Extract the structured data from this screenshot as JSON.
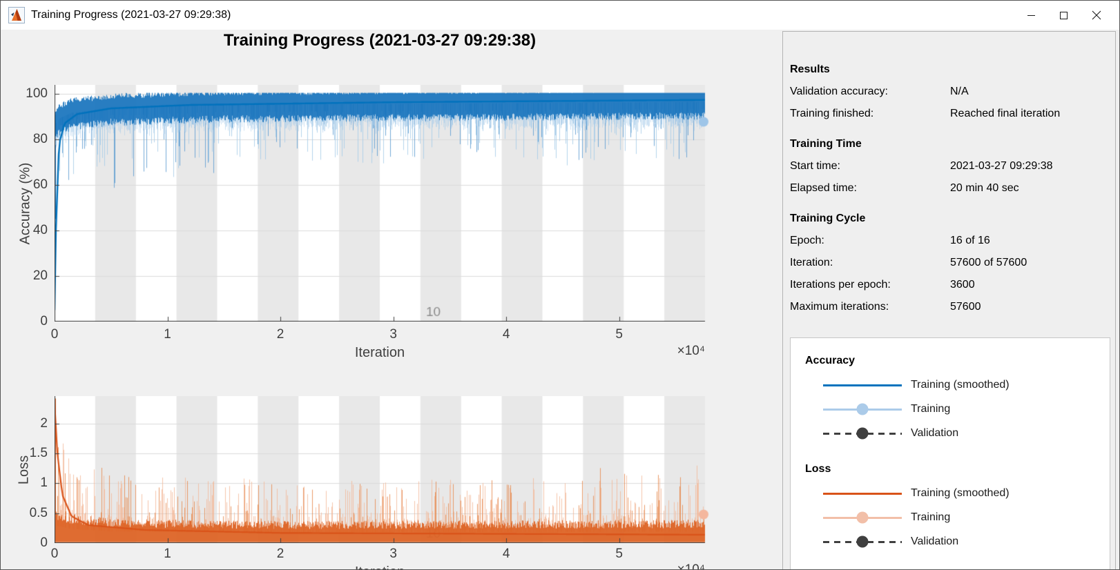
{
  "window": {
    "title": "Training Progress (2021-03-27 09:29:38)",
    "controls": {
      "minimize": "Minimize",
      "maximize": "Maximize",
      "close": "Close"
    }
  },
  "main": {
    "title": "Training Progress (2021-03-27 09:29:38)"
  },
  "panel": {
    "sections": [
      {
        "title": "Results",
        "rows": [
          {
            "label": "Validation accuracy:",
            "value": "N/A"
          },
          {
            "label": "Training finished:",
            "value": "Reached final iteration"
          }
        ]
      },
      {
        "title": "Training Time",
        "rows": [
          {
            "label": "Start time:",
            "value": "2021-03-27 09:29:38"
          },
          {
            "label": "Elapsed time:",
            "value": "20 min 40 sec"
          }
        ]
      },
      {
        "title": "Training Cycle",
        "rows": [
          {
            "label": "Epoch:",
            "value": "16 of 16"
          },
          {
            "label": "Iteration:",
            "value": "57600 of 57600"
          },
          {
            "label": "Iterations per epoch:",
            "value": "3600"
          },
          {
            "label": "Maximum iterations:",
            "value": "57600"
          }
        ]
      }
    ]
  },
  "legend": {
    "groups": [
      {
        "title": "Accuracy",
        "items": [
          {
            "label": "Training (smoothed)",
            "line": "solid",
            "color": "#0072BD",
            "marker": null
          },
          {
            "label": "Training",
            "line": "solid",
            "color": "#ABCBE9",
            "marker": "#ABCBE9"
          },
          {
            "label": "Validation",
            "line": "dashed",
            "color": "#3F3F3F",
            "marker": "#3F3F3F"
          }
        ]
      },
      {
        "title": "Loss",
        "items": [
          {
            "label": "Training (smoothed)",
            "line": "solid",
            "color": "#D95319",
            "marker": null
          },
          {
            "label": "Training",
            "line": "solid",
            "color": "#F2BFA8",
            "marker": "#F2BFA8"
          },
          {
            "label": "Validation",
            "line": "dashed",
            "color": "#3F3F3F",
            "marker": "#3F3F3F"
          }
        ]
      }
    ]
  },
  "chart_data": [
    {
      "type": "line",
      "name": "accuracy",
      "xlabel": "Iteration",
      "ylabel": "Accuracy (%)",
      "x_scale_label": "×10⁴",
      "xlim": [
        0,
        57600
      ],
      "ylim": [
        0,
        103.8
      ],
      "xticks": [
        0,
        10000,
        20000,
        30000,
        40000,
        50000
      ],
      "xtick_labels": [
        "0",
        "1",
        "2",
        "3",
        "4",
        "5"
      ],
      "yticks": [
        0,
        20,
        40,
        60,
        80,
        100
      ],
      "ytick_labels": [
        "0",
        "20",
        "40",
        "60",
        "80",
        "100"
      ],
      "grid": "horizontal",
      "legend_position": "external-right-panel",
      "epochs": 16,
      "iterations_per_epoch": 3600,
      "epoch_band_label": {
        "epoch": 10,
        "text": "10"
      },
      "band_color": "#E8E8E8",
      "grid_color": "#DBDBDB",
      "series": [
        {
          "name": "Training (smoothed)",
          "style": "solid",
          "color": "#0072BD",
          "line_width": 2.4,
          "points": [
            [
              0,
              5
            ],
            [
              120,
              40
            ],
            [
              400,
              78
            ],
            [
              900,
              87
            ],
            [
              2000,
              91
            ],
            [
              5000,
              93.5
            ],
            [
              12000,
              95
            ],
            [
              30000,
              96.2
            ],
            [
              57600,
              97.2
            ]
          ]
        },
        {
          "name": "Training",
          "style": "raw-noisy",
          "color_dense": "#1773BD",
          "color_spike": "#A6CBE9",
          "color_spike_mid": "#5B9BD0",
          "envelope_center": [
            [
              0,
              86
            ],
            [
              400,
              89
            ],
            [
              1500,
              91.5
            ],
            [
              5000,
              93.5
            ],
            [
              15000,
              95
            ],
            [
              57600,
              96.3
            ]
          ],
          "spike_depth_max": [
            [
              0,
              36
            ],
            [
              3000,
              34
            ],
            [
              8000,
              30
            ],
            [
              20000,
              24
            ],
            [
              57600,
              22
            ]
          ],
          "spike_probability": 0.55,
          "start_value": 45,
          "final_value": 87.6
        }
      ],
      "end_marker": {
        "x": 57600,
        "y": 87.6,
        "color": "#9EC5E8",
        "radius": 7
      }
    },
    {
      "type": "line",
      "name": "loss",
      "xlabel": "Iteration",
      "ylabel": "Loss",
      "x_scale_label": "×10⁴",
      "xlim": [
        0,
        57600
      ],
      "ylim": [
        0,
        2.46
      ],
      "xticks": [
        0,
        10000,
        20000,
        30000,
        40000,
        50000
      ],
      "xtick_labels": [
        "0",
        "1",
        "2",
        "3",
        "4",
        "5"
      ],
      "yticks": [
        0,
        0.5,
        1,
        1.5,
        2
      ],
      "ytick_labels": [
        "0",
        "0.5",
        "1",
        "1.5",
        "2"
      ],
      "grid": "horizontal",
      "legend_position": "external-right-panel",
      "epochs": 16,
      "iterations_per_epoch": 3600,
      "epoch_band_label": {
        "epoch": 10,
        "text": "10"
      },
      "band_color": "#E8E8E8",
      "grid_color": "#DBDBDB",
      "series": [
        {
          "name": "Training (smoothed)",
          "style": "solid",
          "color": "#D95319",
          "line_width": 2.2,
          "points": [
            [
              0,
              2.35
            ],
            [
              250,
              1.5
            ],
            [
              700,
              0.8
            ],
            [
              1500,
              0.45
            ],
            [
              3000,
              0.3
            ],
            [
              8000,
              0.22
            ],
            [
              20000,
              0.17
            ],
            [
              57600,
              0.14
            ]
          ]
        },
        {
          "name": "Training",
          "style": "raw-noisy",
          "color_dense": "#DD6426",
          "color_spike": "#F3B796",
          "color_spike_mid": "#E58244",
          "band_top": [
            [
              0,
              0.5
            ],
            [
              1500,
              0.4
            ],
            [
              5000,
              0.33
            ],
            [
              20000,
              0.3
            ],
            [
              57600,
              0.32
            ]
          ],
          "spike_max": [
            [
              0,
              2.42
            ],
            [
              600,
              1.9
            ],
            [
              1500,
              1.45
            ],
            [
              4000,
              1.25
            ],
            [
              10000,
              1.1
            ],
            [
              30000,
              1.05
            ],
            [
              57600,
              1.2
            ]
          ],
          "spike_probability": 0.62,
          "start_value": 2.42,
          "final_value": 0.48
        }
      ],
      "end_marker": {
        "x": 57600,
        "y": 0.48,
        "color": "#F4B79E",
        "radius": 7
      }
    }
  ]
}
